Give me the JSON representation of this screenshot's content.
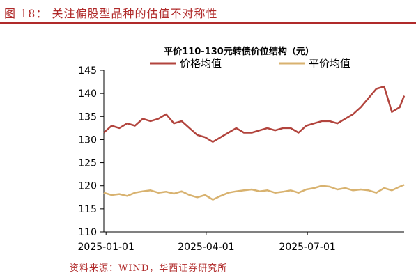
{
  "figure": {
    "title": "图 18： 关注偏股型品种的估值不对称性",
    "source": "资料来源：WIND，华西证券研究所"
  },
  "colors": {
    "accent": "#b02a2a",
    "series1": "#b2443d",
    "series2": "#d8b26f"
  },
  "chart_data": {
    "type": "line",
    "title": "平价110-130元转债价位结构（元）",
    "xlabel": "",
    "ylabel": "",
    "ylim": [
      110,
      145
    ],
    "yticks": [
      110,
      115,
      120,
      125,
      130,
      135,
      140,
      145
    ],
    "xticks": [
      "2025-01-01",
      "2025-04-01",
      "2025-07-01"
    ],
    "xlim": [
      "2024-12-30",
      "2025-09-26"
    ],
    "grid": false,
    "legend_position": "top-center",
    "x": [
      "2024-12-30",
      "2025-01-06",
      "2025-01-13",
      "2025-01-20",
      "2025-01-27",
      "2025-02-03",
      "2025-02-10",
      "2025-02-17",
      "2025-02-24",
      "2025-03-03",
      "2025-03-10",
      "2025-03-17",
      "2025-03-24",
      "2025-03-31",
      "2025-04-07",
      "2025-04-14",
      "2025-04-21",
      "2025-04-28",
      "2025-05-05",
      "2025-05-12",
      "2025-05-19",
      "2025-05-26",
      "2025-06-02",
      "2025-06-09",
      "2025-06-16",
      "2025-06-23",
      "2025-06-30",
      "2025-07-07",
      "2025-07-14",
      "2025-07-21",
      "2025-07-28",
      "2025-08-04",
      "2025-08-11",
      "2025-08-18",
      "2025-08-25",
      "2025-09-01",
      "2025-09-08",
      "2025-09-15",
      "2025-09-22",
      "2025-09-26"
    ],
    "series": [
      {
        "name": "价格均值",
        "values": [
          131.5,
          133.0,
          132.5,
          133.5,
          133.0,
          134.5,
          134.0,
          134.5,
          135.5,
          133.5,
          134.0,
          132.5,
          131.0,
          130.5,
          129.5,
          130.5,
          131.5,
          132.5,
          131.5,
          131.5,
          132.0,
          132.5,
          132.0,
          132.5,
          132.5,
          131.5,
          133.0,
          133.5,
          134.0,
          134.0,
          133.5,
          134.5,
          135.5,
          137.0,
          139.0,
          141.0,
          141.5,
          136.0,
          137.0,
          139.5
        ]
      },
      {
        "name": "平价均值",
        "values": [
          118.5,
          118.0,
          118.2,
          117.8,
          118.5,
          118.8,
          119.0,
          118.5,
          118.7,
          118.3,
          118.8,
          118.0,
          117.5,
          118.0,
          117.0,
          117.8,
          118.5,
          118.8,
          119.0,
          119.2,
          118.8,
          119.0,
          118.5,
          118.7,
          119.0,
          118.5,
          119.2,
          119.5,
          120.0,
          119.8,
          119.2,
          119.5,
          119.0,
          119.2,
          119.0,
          118.5,
          119.5,
          119.0,
          119.8,
          120.2
        ]
      }
    ]
  }
}
